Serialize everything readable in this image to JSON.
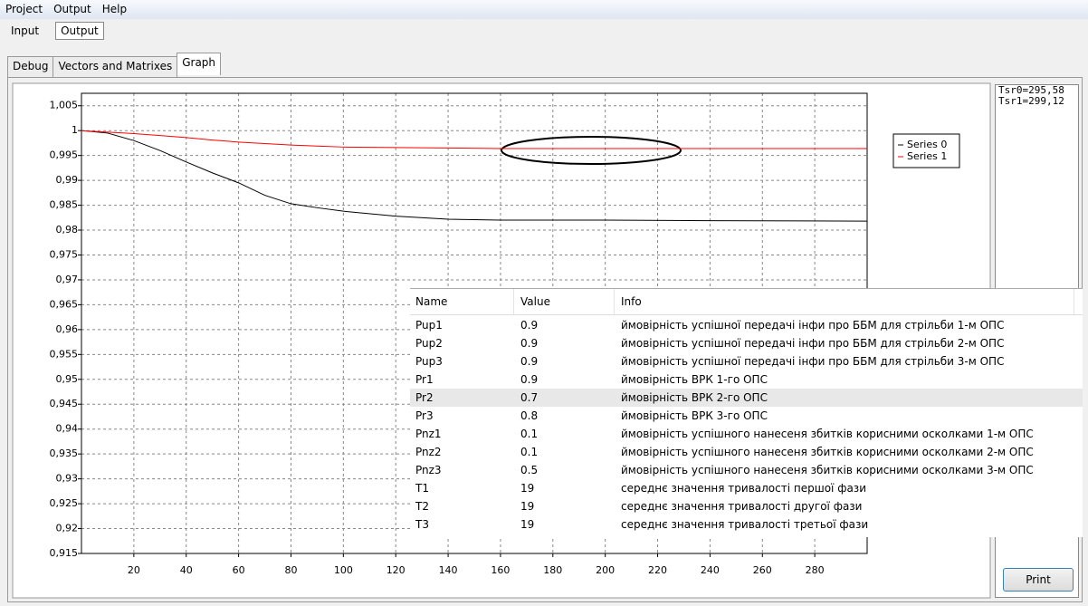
{
  "menu": [
    "Project",
    "Output",
    "Help"
  ],
  "toolbar": [
    "Input",
    "Output"
  ],
  "tabs": [
    "Debug",
    "Vectors and Matrixes",
    "Graph"
  ],
  "chart_data": {
    "type": "line",
    "x": [
      0,
      10,
      20,
      30,
      40,
      50,
      60,
      70,
      80,
      90,
      100,
      120,
      140,
      160,
      200,
      240,
      300
    ],
    "series": [
      {
        "name": "Series 0",
        "color": "#000000",
        "values": [
          1,
          0.9995,
          0.998,
          0.996,
          0.9937,
          0.9915,
          0.9895,
          0.987,
          0.9853,
          0.9845,
          0.9838,
          0.9828,
          0.9822,
          0.982,
          0.982,
          0.9819,
          0.9818
        ]
      },
      {
        "name": "Series 1",
        "color": "#ff0000",
        "values": [
          1,
          0.9997,
          0.9994,
          0.999,
          0.9986,
          0.9981,
          0.9977,
          0.9974,
          0.9971,
          0.9969,
          0.9967,
          0.9966,
          0.9965,
          0.9964,
          0.9964,
          0.9964,
          0.9964
        ]
      }
    ],
    "xlim": [
      0,
      300
    ],
    "xticks": [
      20,
      40,
      60,
      80,
      100,
      120,
      140,
      160,
      180,
      200,
      220,
      240,
      260,
      280
    ],
    "ylim": [
      0.915,
      1.0075
    ],
    "yticks": [
      {
        "value": 0.915,
        "label": "0,915"
      },
      {
        "value": 0.92,
        "label": "0,92"
      },
      {
        "value": 0.925,
        "label": "0,925"
      },
      {
        "value": 0.93,
        "label": "0,93"
      },
      {
        "value": 0.935,
        "label": "0,935"
      },
      {
        "value": 0.94,
        "label": "0,94"
      },
      {
        "value": 0.945,
        "label": "0,945"
      },
      {
        "value": 0.95,
        "label": "0,95"
      },
      {
        "value": 0.955,
        "label": "0,955"
      },
      {
        "value": 0.96,
        "label": "0,96"
      },
      {
        "value": 0.965,
        "label": "0,965"
      },
      {
        "value": 0.97,
        "label": "0,97"
      },
      {
        "value": 0.975,
        "label": "0,975"
      },
      {
        "value": 0.98,
        "label": "0,98"
      },
      {
        "value": 0.985,
        "label": "0,985"
      },
      {
        "value": 0.99,
        "label": "0,99"
      },
      {
        "value": 0.995,
        "label": "0,995"
      },
      1,
      {
        "value": 1.005,
        "label": "1,005"
      }
    ],
    "grid": true
  },
  "results": [
    "Tsr0=295,58",
    "Tsr1=299,12"
  ],
  "print_button": "Print",
  "table": {
    "columns": [
      "Name",
      "Value",
      "Info"
    ],
    "selected_row": 4,
    "rows": [
      [
        "Pup1",
        "0.9",
        "ймовірність успішної передачі інфи про ББМ для стрільби 1-м ОПС"
      ],
      [
        "Pup2",
        "0.9",
        "ймовірність успішної передачі інфи про ББМ для стрільби 2-м ОПС"
      ],
      [
        "Pup3",
        "0.9",
        "ймовірність успішної передачі інфи про ББМ для стрільби 3-м ОПС"
      ],
      [
        "Pr1",
        "0.9",
        "ймовірність ВРК 1-го ОПС"
      ],
      [
        "Pr2",
        "0.7",
        "ймовірність ВРК 2-го ОПС"
      ],
      [
        "Pr3",
        "0.8",
        "ймовірність ВРК 3-го ОПС"
      ],
      [
        "Pnz1",
        "0.1",
        "ймовірність успішного нанесеня збитків корисними осколками 1-м ОПС"
      ],
      [
        "Pnz2",
        "0.1",
        "ймовірність успішного нанесеня збитків корисними осколками 2-м ОПС"
      ],
      [
        "Pnz3",
        "0.5",
        "ймовірність успішного нанесеня збитків корисними осколками 3-м ОПС"
      ],
      [
        "T1",
        "19",
        "середнє значення тривалості першої фази"
      ],
      [
        "T2",
        "19",
        "середнє значення тривалості другої фази"
      ],
      [
        "T3",
        "19",
        "середнє значення тривалості третьої фази"
      ]
    ]
  }
}
